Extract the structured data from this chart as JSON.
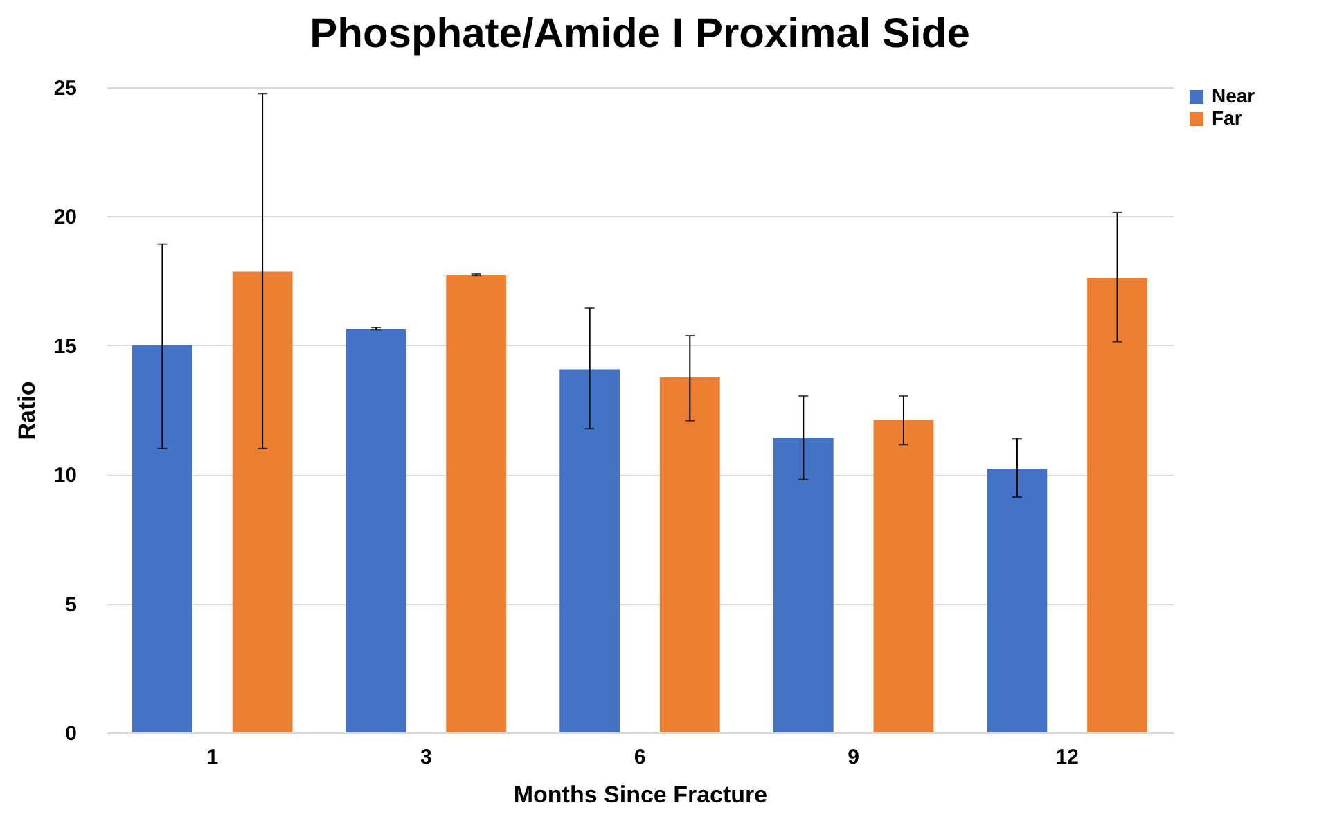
{
  "chart_data": {
    "type": "bar",
    "title": "Phosphate/Amide I Proximal Side",
    "xlabel": "Months Since Fracture",
    "ylabel": "Ratio",
    "categories": [
      "1",
      "3",
      "6",
      "9",
      "12"
    ],
    "series": [
      {
        "name": "Near",
        "color": "#4472c4",
        "values": [
          15.0,
          15.64,
          14.07,
          11.42,
          10.22
        ],
        "errors": [
          [
            11.0,
            18.92
          ],
          [
            15.6,
            15.69
          ],
          [
            11.77,
            16.44
          ],
          [
            9.8,
            13.04
          ],
          [
            9.12,
            11.39
          ]
        ]
      },
      {
        "name": "Far",
        "color": "#ed7d31",
        "values": [
          17.85,
          17.73,
          13.77,
          12.11,
          17.62
        ],
        "errors": [
          [
            11.0,
            24.75
          ],
          [
            17.7,
            17.76
          ],
          [
            12.08,
            15.37
          ],
          [
            11.15,
            13.04
          ],
          [
            15.14,
            20.15
          ]
        ]
      }
    ],
    "ylim": [
      0,
      25
    ],
    "yticks": [
      0,
      5,
      10,
      15,
      20,
      25
    ],
    "grid": "y",
    "legend": "right"
  }
}
